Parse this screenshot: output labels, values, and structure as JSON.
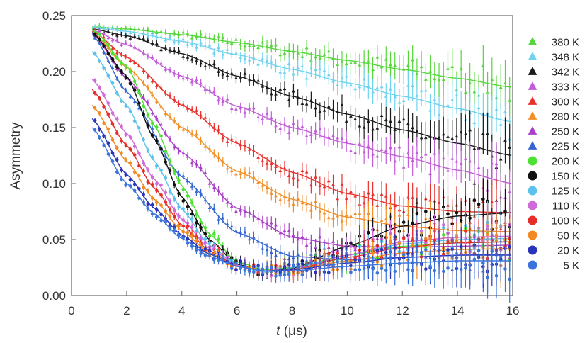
{
  "chart_data": {
    "type": "scatter",
    "title": "",
    "xlabel_italic": "t",
    "xlabel_unit": " (μs)",
    "ylabel": "Asymmetry",
    "xlim": [
      0,
      16
    ],
    "ylim": [
      0,
      0.25
    ],
    "xticks": [
      0,
      2,
      4,
      6,
      8,
      10,
      12,
      14,
      16
    ],
    "yticks": [
      0.0,
      0.05,
      0.1,
      0.15,
      0.2,
      0.25
    ],
    "xtick_labels": [
      "0",
      "2",
      "4",
      "6",
      "8",
      "10",
      "12",
      "14",
      "16"
    ],
    "ytick_labels": [
      "0.00",
      "0.05",
      "0.10",
      "0.15",
      "0.20",
      "0.25"
    ],
    "legend_position": "right",
    "series": [
      {
        "name": "380 K",
        "marker": "triangle",
        "color": "#55d63a",
        "x": [
          0.75,
          2,
          4,
          6,
          8,
          10,
          12,
          14,
          16
        ],
        "y": [
          0.24,
          0.238,
          0.233,
          0.226,
          0.218,
          0.21,
          0.202,
          0.194,
          0.186
        ]
      },
      {
        "name": "348 K",
        "marker": "triangle",
        "color": "#6fd3ef",
        "x": [
          0.75,
          2,
          4,
          6,
          8,
          10,
          12,
          14,
          16
        ],
        "y": [
          0.239,
          0.236,
          0.227,
          0.215,
          0.202,
          0.19,
          0.178,
          0.167,
          0.155
        ]
      },
      {
        "name": "342 K",
        "marker": "triangle",
        "color": "#1a1a1a",
        "x": [
          0.75,
          2,
          4,
          6,
          8,
          10,
          12,
          14,
          16
        ],
        "y": [
          0.238,
          0.232,
          0.216,
          0.196,
          0.178,
          0.162,
          0.148,
          0.136,
          0.125
        ]
      },
      {
        "name": "333 K",
        "marker": "triangle",
        "color": "#c25cd8",
        "x": [
          0.75,
          2,
          4,
          6,
          8,
          10,
          12,
          14,
          16
        ],
        "y": [
          0.237,
          0.224,
          0.196,
          0.169,
          0.15,
          0.136,
          0.124,
          0.112,
          0.1
        ]
      },
      {
        "name": "300 K",
        "marker": "triangle",
        "color": "#e8302c",
        "x": [
          0.75,
          2,
          4,
          6,
          8,
          10,
          12,
          14,
          16
        ],
        "y": [
          0.236,
          0.213,
          0.17,
          0.136,
          0.11,
          0.091,
          0.08,
          0.075,
          0.074
        ]
      },
      {
        "name": "280 K",
        "marker": "triangle",
        "color": "#f28f28",
        "x": [
          0.75,
          2,
          4,
          6,
          8,
          10,
          12,
          14,
          16
        ],
        "y": [
          0.235,
          0.204,
          0.15,
          0.111,
          0.086,
          0.07,
          0.062,
          0.058,
          0.057
        ]
      },
      {
        "name": "250 K",
        "marker": "triangle",
        "color": "#a93fc7",
        "x": [
          0.75,
          2,
          4,
          6,
          8,
          10,
          12,
          14,
          16
        ],
        "y": [
          0.234,
          0.194,
          0.128,
          0.078,
          0.052,
          0.044,
          0.043,
          0.044,
          0.045
        ]
      },
      {
        "name": "225 K",
        "marker": "triangle",
        "color": "#3565cf",
        "x": [
          0.75,
          2,
          4,
          6,
          8,
          10,
          12,
          14,
          16
        ],
        "y": [
          0.233,
          0.182,
          0.106,
          0.056,
          0.035,
          0.032,
          0.034,
          0.036,
          0.037
        ]
      },
      {
        "name": "200 K",
        "marker": "circle",
        "color": "#4fe034",
        "x": [
          0.75,
          2,
          3,
          4,
          5,
          6,
          7,
          8,
          10,
          12,
          14,
          16
        ],
        "y": [
          0.238,
          0.205,
          0.152,
          0.098,
          0.055,
          0.03,
          0.023,
          0.025,
          0.036,
          0.044,
          0.047,
          0.048
        ]
      },
      {
        "name": "150 K",
        "marker": "circle",
        "color": "#111111",
        "x": [
          0.75,
          2,
          3,
          4,
          5,
          6,
          7,
          8,
          10,
          12,
          14,
          16
        ],
        "y": [
          0.235,
          0.196,
          0.14,
          0.088,
          0.05,
          0.028,
          0.021,
          0.024,
          0.044,
          0.062,
          0.071,
          0.074
        ]
      },
      {
        "name": "125 K",
        "marker": "circle",
        "color": "#5cc2ec",
        "x": [
          0.75,
          2,
          3,
          4,
          5,
          6,
          7,
          8,
          10,
          12,
          14,
          16
        ],
        "y": [
          0.218,
          0.17,
          0.12,
          0.077,
          0.045,
          0.027,
          0.021,
          0.023,
          0.036,
          0.046,
          0.05,
          0.051
        ]
      },
      {
        "name": "110 K",
        "marker": "circle",
        "color": "#cf6ad9",
        "x": [
          0.75,
          2,
          3,
          4,
          5,
          6,
          7,
          8,
          10,
          12,
          14,
          16
        ],
        "y": [
          0.193,
          0.145,
          0.104,
          0.068,
          0.042,
          0.027,
          0.022,
          0.023,
          0.036,
          0.048,
          0.052,
          0.053
        ]
      },
      {
        "name": "100 K",
        "marker": "circle",
        "color": "#e52d2a",
        "x": [
          0.75,
          2,
          3,
          4,
          5,
          6,
          7,
          8,
          10,
          12,
          14,
          16
        ],
        "y": [
          0.184,
          0.134,
          0.096,
          0.063,
          0.04,
          0.026,
          0.022,
          0.023,
          0.034,
          0.043,
          0.047,
          0.048
        ]
      },
      {
        "name": "50 K",
        "marker": "circle",
        "color": "#f28a24",
        "x": [
          0.75,
          2,
          3,
          4,
          5,
          6,
          7,
          8,
          10,
          12,
          14,
          16
        ],
        "y": [
          0.17,
          0.12,
          0.086,
          0.058,
          0.038,
          0.026,
          0.022,
          0.023,
          0.031,
          0.038,
          0.041,
          0.042
        ]
      },
      {
        "name": "20 K",
        "marker": "circle",
        "color": "#2a34b8",
        "x": [
          0.75,
          2,
          3,
          4,
          5,
          6,
          7,
          8,
          10,
          12,
          14,
          16
        ],
        "y": [
          0.158,
          0.108,
          0.078,
          0.054,
          0.037,
          0.026,
          0.022,
          0.023,
          0.029,
          0.034,
          0.036,
          0.036
        ]
      },
      {
        "name": "5 K",
        "marker": "circle",
        "color": "#3a74dc",
        "x": [
          0.75,
          2,
          3,
          4,
          5,
          6,
          7,
          8,
          10,
          12,
          14,
          16
        ],
        "y": [
          0.15,
          0.1,
          0.073,
          0.051,
          0.035,
          0.026,
          0.022,
          0.022,
          0.026,
          0.029,
          0.031,
          0.031
        ]
      }
    ]
  }
}
